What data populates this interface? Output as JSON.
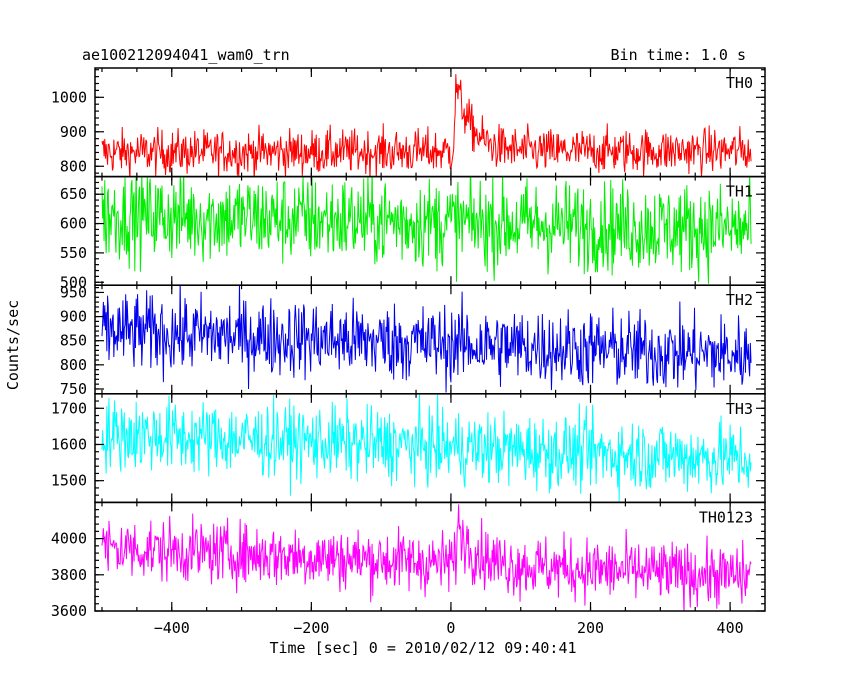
{
  "title": "ae100212094041_wam0_trn",
  "bin_time": "Bin time: 1.0 s",
  "ylabel": "Counts/sec",
  "xlabel": "Time [sec] 0 = 2010/02/12 09:40:41",
  "chart_data": {
    "type": "line",
    "x_range": [
      -500,
      430
    ],
    "xlim": [
      -510,
      450
    ],
    "x_ticks": [
      -400,
      -200,
      0,
      200,
      400
    ],
    "x_tick_labels": [
      "−400",
      "−200",
      "0",
      "200",
      "400"
    ],
    "panels": [
      {
        "name": "TH0",
        "color": "#ff0000",
        "ylim": [
          770,
          1085
        ],
        "y_ticks": [
          800,
          900,
          1000
        ],
        "baseline_start": 840,
        "baseline_end": 845,
        "noise": 32,
        "peak": {
          "time": 8,
          "height": 190,
          "decay": 22
        }
      },
      {
        "name": "TH1",
        "color": "#00ee00",
        "ylim": [
          495,
          680
        ],
        "y_ticks": [
          500,
          550,
          600,
          650
        ],
        "baseline_start": 615,
        "baseline_end": 590,
        "noise": 38,
        "peak": null
      },
      {
        "name": "TH2",
        "color": "#0000ee",
        "ylim": [
          740,
          965
        ],
        "y_ticks": [
          750,
          800,
          850,
          900,
          950
        ],
        "baseline_start": 870,
        "baseline_end": 820,
        "noise": 40,
        "peak": null
      },
      {
        "name": "TH3",
        "color": "#00ffff",
        "ylim": [
          1440,
          1740
        ],
        "y_ticks": [
          1500,
          1600,
          1700
        ],
        "baseline_start": 1630,
        "baseline_end": 1560,
        "noise": 50,
        "peak": null
      },
      {
        "name": "TH0123",
        "color": "#ff00ff",
        "ylim": [
          3600,
          4200
        ],
        "y_ticks": [
          3600,
          3800,
          4000
        ],
        "y_tick_labels": [
          "3600",
          "3800",
          "4000"
        ],
        "baseline_start": 3950,
        "baseline_end": 3790,
        "noise": 85,
        "peak": {
          "time": 10,
          "height": 200,
          "decay": 25
        }
      }
    ]
  }
}
